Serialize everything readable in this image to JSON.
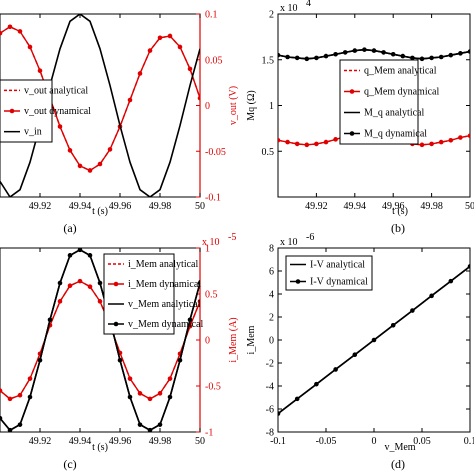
{
  "chart_data": [
    {
      "panel": "a",
      "caption": "(a)",
      "type": "line",
      "xlabel": "t (s)",
      "ylabel_right": "v_out (V)",
      "xlim": [
        49.9,
        50.0
      ],
      "ylim_right": [
        -0.1,
        0.1
      ],
      "xticks": [
        "49.92",
        "49.94",
        "49.96",
        "49.98",
        "50"
      ],
      "yticks_right": [
        "0.1",
        "0.05",
        "0",
        "-0.05",
        "-0.1"
      ],
      "legend_position": "center-left",
      "series": [
        {
          "name": "v_out analytical",
          "color": "#e00000",
          "style": "dashed",
          "axis": "right",
          "x": [
            49.9,
            49.905,
            49.91,
            49.915,
            49.92,
            49.925,
            49.93,
            49.935,
            49.94,
            49.945,
            49.95,
            49.955,
            49.96,
            49.965,
            49.97,
            49.975,
            49.98,
            49.985,
            49.99,
            49.995,
            50.0
          ],
          "y": [
            0.079,
            0.086,
            0.081,
            0.064,
            0.038,
            0.008,
            -0.023,
            -0.049,
            -0.066,
            -0.071,
            -0.064,
            -0.048,
            -0.023,
            0.006,
            0.035,
            0.06,
            0.074,
            0.076,
            0.064,
            0.04,
            0.008
          ]
        },
        {
          "name": "v_out dynamical",
          "color": "#e00000",
          "style": "solid-marker",
          "axis": "right",
          "x": [
            49.9,
            49.905,
            49.91,
            49.915,
            49.92,
            49.925,
            49.93,
            49.935,
            49.94,
            49.945,
            49.95,
            49.955,
            49.96,
            49.965,
            49.97,
            49.975,
            49.98,
            49.985,
            49.99,
            49.995,
            50.0
          ],
          "y": [
            0.079,
            0.086,
            0.081,
            0.064,
            0.038,
            0.008,
            -0.023,
            -0.049,
            -0.066,
            -0.071,
            -0.064,
            -0.048,
            -0.023,
            0.006,
            0.035,
            0.06,
            0.074,
            0.076,
            0.064,
            0.04,
            0.008
          ]
        },
        {
          "name": "v_in",
          "color": "#000000",
          "style": "solid",
          "axis": "left",
          "x": [
            49.9,
            49.905,
            49.91,
            49.915,
            49.92,
            49.925,
            49.93,
            49.935,
            49.94,
            49.945,
            49.95,
            49.955,
            49.96,
            49.965,
            49.97,
            49.975,
            49.98,
            49.985,
            49.99,
            49.995,
            50.0
          ],
          "y": [
            -0.83,
            -1.0,
            -0.92,
            -0.62,
            -0.22,
            0.22,
            0.62,
            0.92,
            1.0,
            0.92,
            0.62,
            0.22,
            -0.22,
            -0.62,
            -0.92,
            -1.0,
            -0.92,
            -0.62,
            -0.22,
            0.22,
            0.62
          ]
        }
      ]
    },
    {
      "panel": "b",
      "caption": "(b)",
      "type": "line",
      "xlabel": "t (s)",
      "ylabel": "Mq (Ω)",
      "y_multiplier": "x 10",
      "y_multiplier_exp": "4",
      "xlim": [
        49.9,
        50.0
      ],
      "ylim": [
        0,
        2.0
      ],
      "xticks": [
        "49.92",
        "49.94",
        "49.96",
        "49.98",
        "50"
      ],
      "yticks": [
        "2",
        "1.5",
        "1",
        "0.5"
      ],
      "legend_position": "center",
      "series": [
        {
          "name": "q_Mem analytical",
          "color": "#e00000",
          "style": "dashed",
          "x": [
            49.9,
            49.905,
            49.91,
            49.915,
            49.92,
            49.925,
            49.93,
            49.935,
            49.94,
            49.945,
            49.95,
            49.955,
            49.96,
            49.965,
            49.97,
            49.975,
            49.98,
            49.985,
            49.99,
            49.995,
            50.0
          ],
          "y": [
            0.62,
            0.6,
            0.58,
            0.57,
            0.58,
            0.6,
            0.63,
            0.66,
            0.68,
            0.69,
            0.68,
            0.66,
            0.63,
            0.6,
            0.58,
            0.57,
            0.58,
            0.6,
            0.62,
            0.65,
            0.67
          ]
        },
        {
          "name": "q_Mem dynamical",
          "color": "#e00000",
          "style": "solid-marker",
          "x": [
            49.9,
            49.905,
            49.91,
            49.915,
            49.92,
            49.925,
            49.93,
            49.935,
            49.94,
            49.945,
            49.95,
            49.955,
            49.96,
            49.965,
            49.97,
            49.975,
            49.98,
            49.985,
            49.99,
            49.995,
            50.0
          ],
          "y": [
            0.62,
            0.6,
            0.58,
            0.57,
            0.58,
            0.6,
            0.63,
            0.66,
            0.68,
            0.69,
            0.68,
            0.66,
            0.63,
            0.6,
            0.58,
            0.57,
            0.58,
            0.6,
            0.62,
            0.65,
            0.67
          ]
        },
        {
          "name": "M_q analytical",
          "color": "#000000",
          "style": "solid",
          "x": [
            49.9,
            49.905,
            49.91,
            49.915,
            49.92,
            49.925,
            49.93,
            49.935,
            49.94,
            49.945,
            49.95,
            49.955,
            49.96,
            49.965,
            49.97,
            49.975,
            49.98,
            49.985,
            49.99,
            49.995,
            50.0
          ],
          "y": [
            1.55,
            1.53,
            1.52,
            1.51,
            1.52,
            1.54,
            1.56,
            1.58,
            1.6,
            1.61,
            1.6,
            1.58,
            1.56,
            1.54,
            1.52,
            1.51,
            1.52,
            1.53,
            1.55,
            1.57,
            1.59
          ]
        },
        {
          "name": "M_q dynamical",
          "color": "#000000",
          "style": "solid-marker",
          "x": [
            49.9,
            49.905,
            49.91,
            49.915,
            49.92,
            49.925,
            49.93,
            49.935,
            49.94,
            49.945,
            49.95,
            49.955,
            49.96,
            49.965,
            49.97,
            49.975,
            49.98,
            49.985,
            49.99,
            49.995,
            50.0
          ],
          "y": [
            1.55,
            1.53,
            1.52,
            1.51,
            1.52,
            1.54,
            1.56,
            1.58,
            1.6,
            1.61,
            1.6,
            1.58,
            1.56,
            1.54,
            1.52,
            1.51,
            1.52,
            1.53,
            1.55,
            1.57,
            1.59
          ]
        }
      ]
    },
    {
      "panel": "c",
      "caption": "(c)",
      "type": "line",
      "xlabel": "t (s)",
      "ylabel_right": "i_Mem (A)",
      "y_multiplier": "x 10",
      "y_multiplier_exp": "-5",
      "xlim": [
        49.9,
        50.0
      ],
      "ylim_right": [
        -1,
        1
      ],
      "xticks": [
        "49.92",
        "49.94",
        "49.96",
        "49.98",
        "50"
      ],
      "yticks_right": [
        "1",
        "0.5",
        "0",
        "-0.5",
        "-1"
      ],
      "legend_position": "top-center",
      "series": [
        {
          "name": "i_Mem analytical",
          "color": "#e00000",
          "style": "dashed",
          "axis": "right",
          "x": [
            49.9,
            49.905,
            49.91,
            49.915,
            49.92,
            49.925,
            49.93,
            49.935,
            49.94,
            49.945,
            49.95,
            49.955,
            49.96,
            49.965,
            49.97,
            49.975,
            49.98,
            49.985,
            49.99,
            49.995,
            50.0
          ],
          "y": [
            -0.55,
            -0.64,
            -0.6,
            -0.42,
            -0.15,
            0.16,
            0.42,
            0.59,
            0.64,
            0.58,
            0.42,
            0.16,
            -0.14,
            -0.42,
            -0.58,
            -0.64,
            -0.58,
            -0.42,
            -0.15,
            0.15,
            0.42
          ]
        },
        {
          "name": "i_Mem dynamical",
          "color": "#e00000",
          "style": "solid-marker",
          "axis": "right",
          "x": [
            49.9,
            49.905,
            49.91,
            49.915,
            49.92,
            49.925,
            49.93,
            49.935,
            49.94,
            49.945,
            49.95,
            49.955,
            49.96,
            49.965,
            49.97,
            49.975,
            49.98,
            49.985,
            49.99,
            49.995,
            50.0
          ],
          "y": [
            -0.55,
            -0.64,
            -0.6,
            -0.42,
            -0.15,
            0.16,
            0.42,
            0.59,
            0.64,
            0.58,
            0.42,
            0.16,
            -0.14,
            -0.42,
            -0.58,
            -0.64,
            -0.58,
            -0.42,
            -0.15,
            0.15,
            0.42
          ]
        },
        {
          "name": "v_Mem analytical",
          "color": "#000000",
          "style": "solid",
          "axis": "left",
          "x": [
            49.9,
            49.905,
            49.91,
            49.915,
            49.92,
            49.925,
            49.93,
            49.935,
            49.94,
            49.945,
            49.95,
            49.955,
            49.96,
            49.965,
            49.97,
            49.975,
            49.98,
            49.985,
            49.99,
            49.995,
            50.0
          ],
          "y": [
            -0.85,
            -0.98,
            -0.92,
            -0.62,
            -0.22,
            0.22,
            0.62,
            0.92,
            0.98,
            0.92,
            0.62,
            0.22,
            -0.22,
            -0.62,
            -0.92,
            -0.98,
            -0.92,
            -0.62,
            -0.22,
            0.22,
            0.62
          ]
        },
        {
          "name": "v_Mem dynamical",
          "color": "#000000",
          "style": "solid-marker",
          "axis": "left",
          "x": [
            49.9,
            49.905,
            49.91,
            49.915,
            49.92,
            49.925,
            49.93,
            49.935,
            49.94,
            49.945,
            49.95,
            49.955,
            49.96,
            49.965,
            49.97,
            49.975,
            49.98,
            49.985,
            49.99,
            49.995,
            50.0
          ],
          "y": [
            -0.85,
            -0.98,
            -0.92,
            -0.62,
            -0.22,
            0.22,
            0.62,
            0.92,
            0.98,
            0.92,
            0.62,
            0.22,
            -0.22,
            -0.62,
            -0.92,
            -0.98,
            -0.92,
            -0.62,
            -0.22,
            0.22,
            0.62
          ]
        }
      ]
    },
    {
      "panel": "d",
      "caption": "(d)",
      "type": "line",
      "xlabel": "v_Mem",
      "ylabel": "i_Mem",
      "y_multiplier": "x 10",
      "y_multiplier_exp": "-6",
      "xlim": [
        -0.1,
        0.1
      ],
      "ylim": [
        -8,
        8
      ],
      "xticks": [
        "-0.1",
        "-0.05",
        "0",
        "0.05",
        "0.1"
      ],
      "yticks": [
        "8",
        "6",
        "4",
        "2",
        "0",
        "-2",
        "-4",
        "-6",
        "-8"
      ],
      "legend_position": "top-left",
      "series": [
        {
          "name": "I-V analytical",
          "color": "#000000",
          "style": "solid",
          "x": [
            -0.1,
            -0.08,
            -0.06,
            -0.04,
            -0.02,
            0.0,
            0.02,
            0.04,
            0.06,
            0.08,
            0.1
          ],
          "y": [
            -6.4,
            -5.12,
            -3.84,
            -2.56,
            -1.28,
            0.0,
            1.28,
            2.56,
            3.84,
            5.12,
            6.4
          ]
        },
        {
          "name": "I-V dynamical",
          "color": "#000000",
          "style": "solid-marker",
          "x": [
            -0.1,
            -0.08,
            -0.06,
            -0.04,
            -0.02,
            0.0,
            0.02,
            0.04,
            0.06,
            0.08,
            0.1
          ],
          "y": [
            -6.4,
            -5.12,
            -3.84,
            -2.56,
            -1.28,
            0.0,
            1.28,
            2.56,
            3.84,
            5.12,
            6.4
          ]
        }
      ]
    }
  ]
}
